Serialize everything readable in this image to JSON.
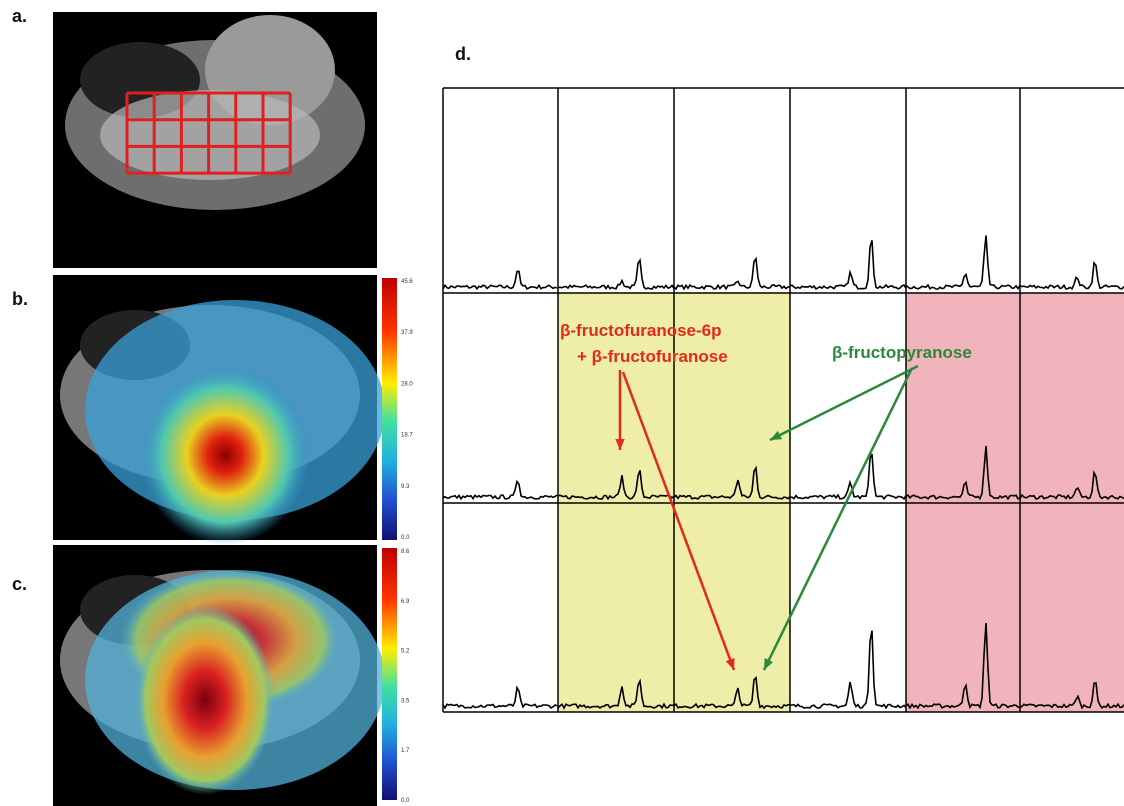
{
  "panels": {
    "a": {
      "label": "a."
    },
    "b": {
      "label": "b.",
      "colorbar_ticks": [
        "45.6",
        "37.9",
        "28.0",
        "18.7",
        "9.3",
        "0.0"
      ]
    },
    "c": {
      "label": "c.",
      "colorbar_ticks": [
        "8.6",
        "6.9",
        "5.2",
        "3.5",
        "1.7",
        "0.0"
      ]
    },
    "d": {
      "label": "d.",
      "annotations": {
        "furanose": [
          "β-fructofuranose-6p",
          "+ β-fructofuranose"
        ],
        "pyranose": "β-fructopyranose"
      }
    }
  }
}
